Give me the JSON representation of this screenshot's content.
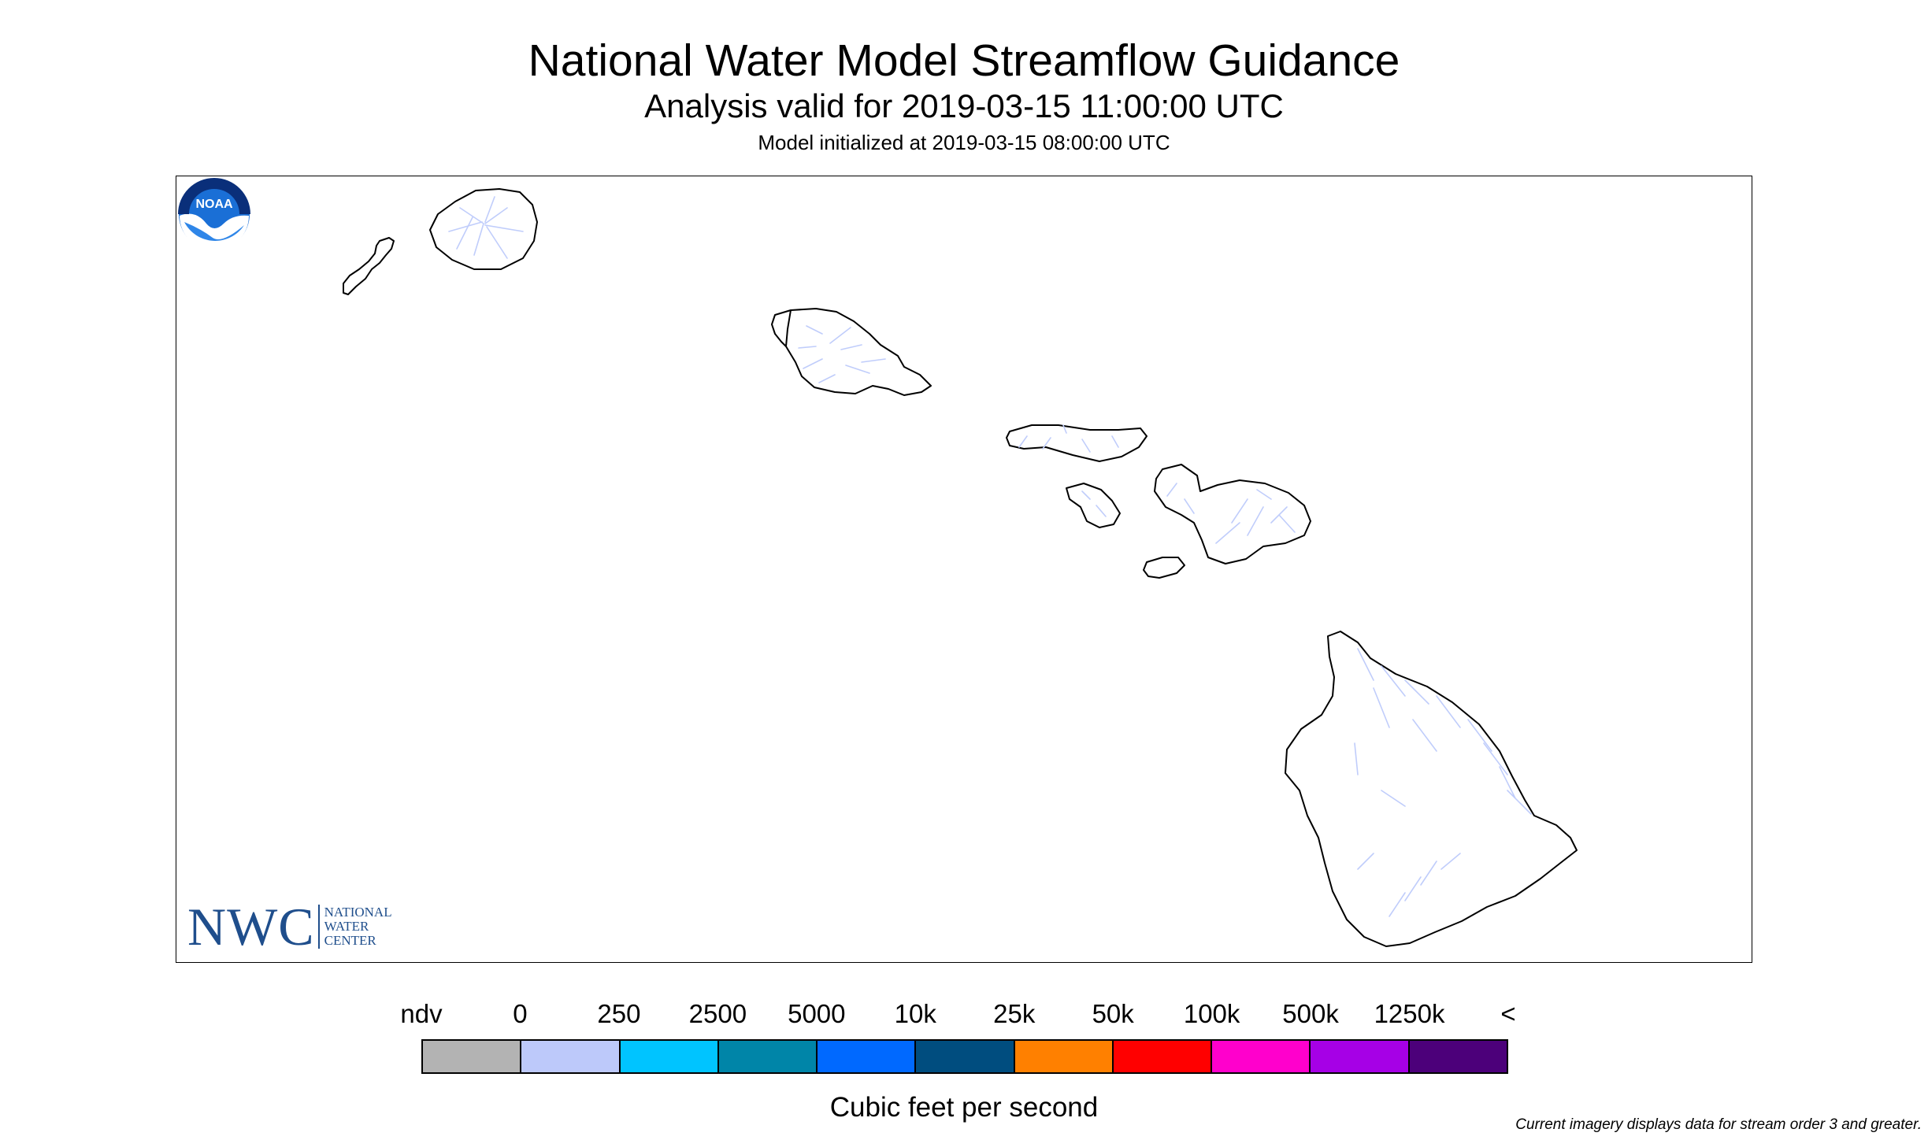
{
  "header": {
    "title": "National Water Model Streamflow Guidance",
    "subtitle": "Analysis valid for 2019-03-15 11:00:00 UTC",
    "model_init": "Model initialized at 2019-03-15 08:00:00 UTC"
  },
  "map": {
    "land_color": "#ffffff",
    "coast_color": "#000000",
    "stream_color": "#c0cdfb",
    "islands": [
      "Niihau",
      "Kauai",
      "Oahu",
      "Molokai",
      "Lanai",
      "Maui",
      "Kahoolawe",
      "Hawaii"
    ]
  },
  "logos": {
    "nwc": {
      "abbr": "NWC",
      "line1": "NATIONAL",
      "line2": "WATER",
      "line3": "CENTER",
      "color": "#1f4e8c"
    },
    "noaa": {
      "text": "NOAA",
      "icon": "noaa-seal-icon"
    }
  },
  "legend": {
    "labels": [
      "ndv",
      "0",
      "250",
      "2500",
      "5000",
      "10k",
      "25k",
      "50k",
      "100k",
      "500k",
      "1250k",
      "<"
    ],
    "colors": [
      "#b3b3b3",
      "#bdc9fa",
      "#00c4ff",
      "#0085a8",
      "#0069ff",
      "#004d7f",
      "#ff8000",
      "#ff0000",
      "#ff00cc",
      "#a600e6",
      "#4c007a"
    ],
    "units_label": "Cubic feet per second"
  },
  "footnote": "Current imagery displays data for stream order 3 and greater."
}
